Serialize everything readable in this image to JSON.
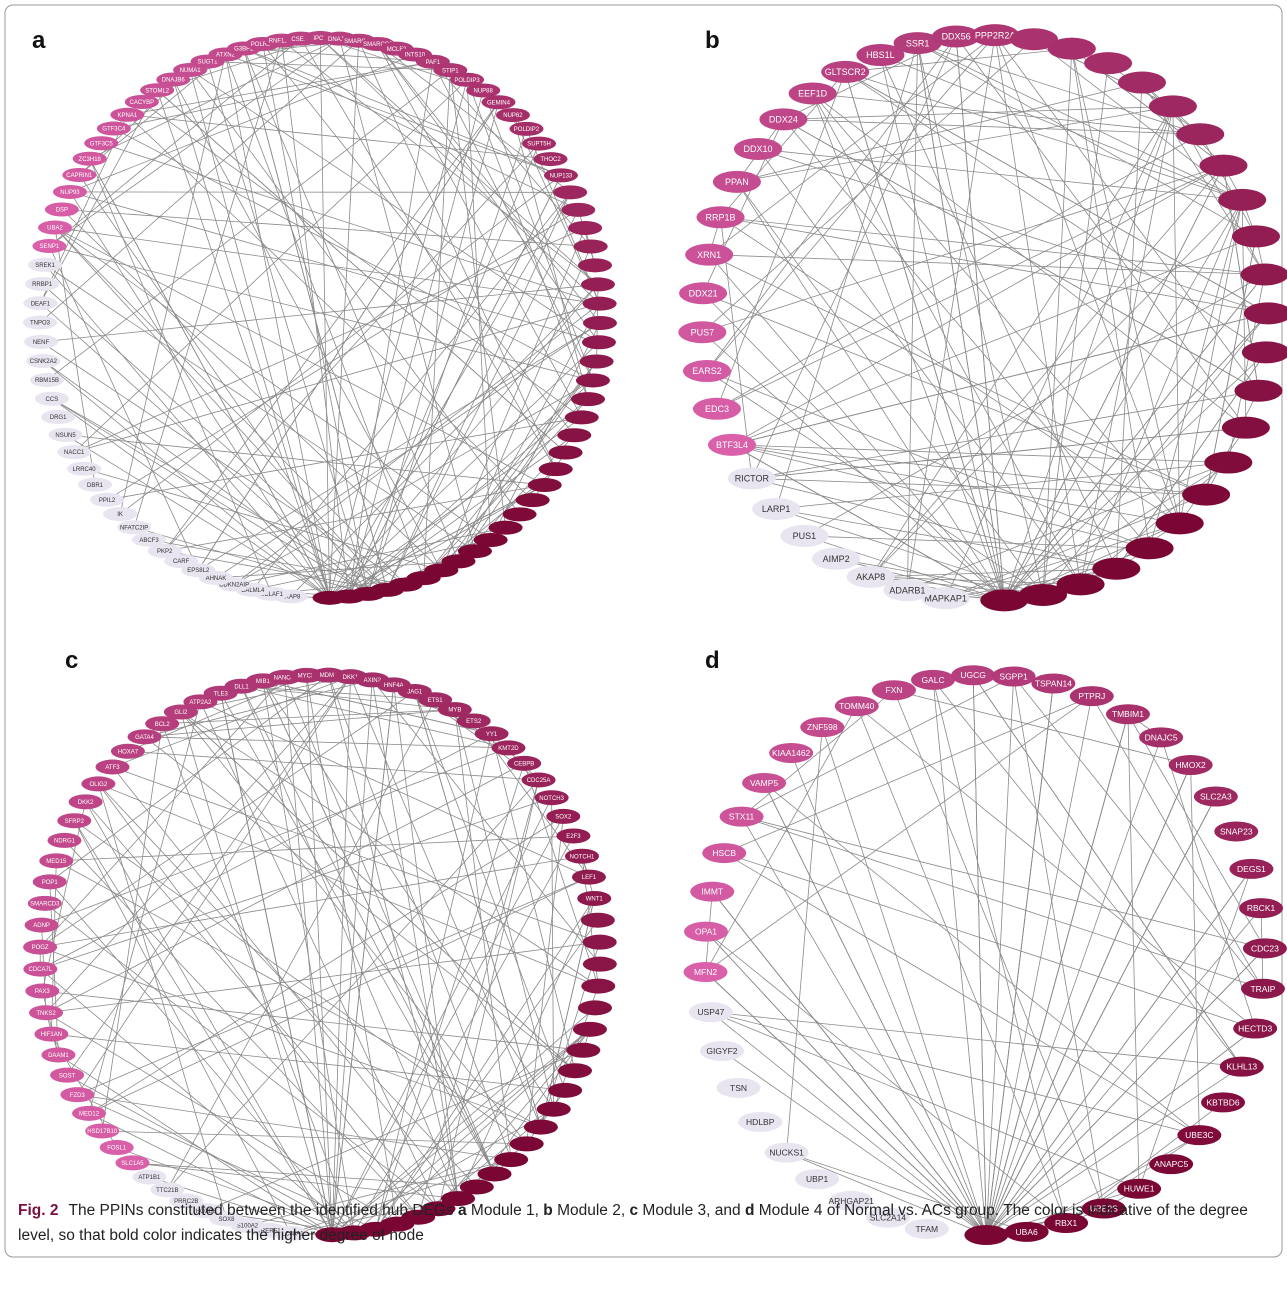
{
  "panels": [
    {
      "letter": "a",
      "nodes": [
        "AKAP8",
        "BCLAF1",
        "CALML4",
        "CDKN2AIP",
        "AHNAK",
        "EPS8L2",
        "CARF",
        "PKP2",
        "ABCF3",
        "NFATC2IP",
        "IK",
        "PPIL2",
        "DBR1",
        "LRRC40",
        "NACC1",
        "NSUN5",
        "DRG1",
        "CCS",
        "RBM15B",
        "CSNK2A2",
        "NENF",
        "TNPO3",
        "DEAF1",
        "RRBP1",
        "SREK1",
        "SENP1",
        "UBA2",
        "DSP",
        "NUP93",
        "CAPRIN1",
        "ZC3H18",
        "GTF3C5",
        "GTF3C4",
        "KPNA1",
        "CACYBP",
        "STOML2",
        "DNAJB6",
        "NUMA1",
        "SUGT1",
        "ATXN2",
        "G3BP2",
        "POLR3E",
        "RNF113A",
        "CSE1L",
        "IPO7",
        "DNAJA3",
        "SMARCC1",
        "SMARCC2",
        "MCLF2",
        "INTS10",
        "PAF1",
        "STIP1",
        "POLDIP3",
        "NUP88",
        "GEMIN4",
        "NUP62",
        "POLDIP2",
        "SUPT5H",
        "THOC2",
        "NUP133"
      ]
    },
    {
      "letter": "b",
      "nodes": [
        "MAPKAP1",
        "ADARB1",
        "AKAP8",
        "AIMP2",
        "PUS1",
        "LARP1",
        "RICTOR",
        "BTF3L4",
        "EDC3",
        "EARS2",
        "PUS7",
        "DDX21",
        "XRN1",
        "RRP1B",
        "PPAN",
        "DDX10",
        "DDX24",
        "EEF1D",
        "GLTSCR2",
        "HBS1L",
        "SSR1",
        "DDX56",
        "PPP2R2A"
      ]
    },
    {
      "letter": "c",
      "nodes": [
        "SLC38A1",
        "TRERF1",
        "S100A2",
        "SOX8",
        "HOXB8",
        "PRRC2B",
        "TTC21B",
        "ATP1B1",
        "SLC1A5",
        "FOSL1",
        "HSD17B10",
        "MED12",
        "FZD3",
        "SOST",
        "DAAM1",
        "HIF1AN",
        "TNKS2",
        "PAX3",
        "CDCA7L",
        "POGZ",
        "ADNP",
        "SMARCD3",
        "POP1",
        "MED15",
        "NDRG1",
        "SFRP2",
        "DKK2",
        "OLIG2",
        "ATF3",
        "HOXA7",
        "GATA4",
        "BCL2",
        "GLI2",
        "ATP2A2",
        "TLE3",
        "DLL1",
        "MIB1",
        "NANOG",
        "MYCN",
        "MDM4",
        "DKK1",
        "AXIN2",
        "HNF4A",
        "JAG1",
        "ETS1",
        "MYB",
        "ETS2",
        "YY1",
        "KMT2D",
        "CEBPB",
        "CDC25A",
        "NOTCH3",
        "SOX2",
        "E2F3",
        "NOTCH1",
        "LEF1",
        "WNT1"
      ]
    },
    {
      "letter": "d",
      "nodes": [
        "TFAM",
        "SLC2A14",
        "ARHGAP21",
        "UBP1",
        "NUCKS1",
        "HDLBP",
        "TSN",
        "GIGYF2",
        "USP47",
        "MFN2",
        "OPA1",
        "IMMT",
        "HSCB",
        "STX11",
        "VAMP5",
        "KIAA1462",
        "ZNF598",
        "TOMM40",
        "FXN",
        "GALC",
        "UGCG",
        "SGPP1",
        "TSPAN14",
        "PTPRJ",
        "TMBIM1",
        "DNAJC5",
        "HMOX2",
        "SLC2A3",
        "SNAP23",
        "DEGS1",
        "RBCK1",
        "CDC23",
        "TRAIP",
        "HECTD3",
        "KLHL13",
        "KBTBD6",
        "UBE3C",
        "ANAPC5",
        "HUWE1",
        "UBE2S",
        "RBX1",
        "UBA6"
      ]
    }
  ],
  "caption": {
    "label": "Fig. 2",
    "parts": [
      "The PPINs constituted between the identified hub DEGs",
      "a",
      "Module 1,",
      "b",
      "Module 2,",
      "c",
      "Module 3, and",
      "d",
      "Module 4 of Normal vs. ACs group. The color is indicative of the degree level, so that bold color indicates the higher degree of node"
    ]
  }
}
